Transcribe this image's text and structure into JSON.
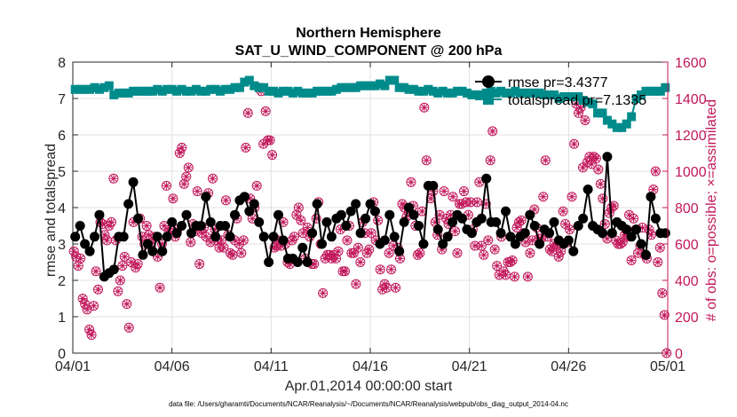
{
  "chart_data": {
    "type": "line",
    "title_line1": "Northern Hemisphere",
    "title_line2": "SAT_U_WIND_COMPONENT @ 200 hPa",
    "xlabel": "Apr.01,2014 00:00:00 start",
    "ylabel_left": "rmse and totalspread",
    "ylabel_right": "# of obs: o=possible; ×=assimilated",
    "footnote": "data file: /Users/gharamti/Documents/NCAR/Reanalysis/~/Documents/NCAR/Reanalysis/webpub/obs_diag_output_2014-04.nc",
    "xlim": [
      0,
      30
    ],
    "ylim_left": [
      0,
      8
    ],
    "ylim_right": [
      0,
      1600
    ],
    "x_ticks": [
      0,
      5,
      10,
      15,
      20,
      25,
      30
    ],
    "x_tick_labels": [
      "04/01",
      "04/06",
      "04/11",
      "04/16",
      "04/21",
      "04/26",
      "05/01"
    ],
    "y_left_ticks": [
      0,
      1,
      2,
      3,
      4,
      5,
      6,
      7,
      8
    ],
    "y_left_tick_labels": [
      "0",
      "1",
      "2",
      "3",
      "4",
      "5",
      "6",
      "7",
      "8"
    ],
    "y_right_ticks": [
      0,
      200,
      400,
      600,
      800,
      1000,
      1200,
      1400,
      1600
    ],
    "y_right_tick_labels": [
      "0",
      "200",
      "400",
      "600",
      "800",
      "1000",
      "1200",
      "1400",
      "1600"
    ],
    "grid": true,
    "legend_position": "top-right",
    "colors": {
      "rmse": "#000000",
      "totalspread": "#008b8b",
      "obs": "#c2185b"
    },
    "series": [
      {
        "name": "rmse pr=3.4377",
        "axis": "left",
        "values": [
          3.2,
          3.5,
          3.0,
          2.8,
          3.2,
          3.8,
          2.1,
          2.2,
          2.3,
          3.2,
          3.2,
          4.1,
          4.7,
          3.7,
          2.7,
          3.0,
          2.8,
          3.2,
          2.8,
          3.2,
          3.6,
          3.3,
          3.5,
          3.8,
          3.3,
          3.5,
          3.5,
          4.3,
          3.6,
          3.2,
          3.5,
          3.5,
          3.2,
          3.8,
          4.2,
          4.3,
          3.9,
          4.1,
          3.6,
          3.2,
          2.5,
          3.2,
          3.8,
          3.1,
          2.6,
          2.6,
          2.5,
          2.9,
          2.5,
          3.3,
          4.1,
          3.0,
          3.6,
          3.2,
          3.7,
          3.8,
          3.5,
          3.9,
          4.1,
          3.3,
          3.7,
          4.1,
          3.9,
          3.0,
          3.1,
          3.8,
          3.2,
          2.8,
          3.6,
          4.0,
          3.8,
          3.5,
          3.0,
          4.6,
          4.6,
          3.4,
          3.0,
          3.2,
          3.6,
          3.8,
          3.7,
          3.4,
          3.3,
          3.6,
          3.7,
          4.8,
          3.6,
          3.6,
          3.3,
          3.9,
          3.2,
          3.0,
          3.2,
          3.3,
          3.8,
          3.5,
          3.0,
          3.4,
          3.3,
          3.6,
          3.1,
          3.0,
          3.1,
          2.8,
          3.5,
          3.7,
          4.5,
          3.5,
          3.4,
          3.3,
          5.4,
          3.3,
          3.6,
          3.5,
          3.4,
          3.2,
          3.4,
          3.0,
          2.7,
          4.3,
          3.7,
          3.3,
          3.3
        ]
      },
      {
        "name": "totalspread pr=7.1335",
        "axis": "left",
        "values": [
          7.25,
          7.25,
          7.25,
          7.25,
          7.3,
          7.25,
          7.3,
          7.35,
          7.1,
          7.15,
          7.15,
          7.15,
          7.2,
          7.2,
          7.2,
          7.2,
          7.2,
          7.25,
          7.2,
          7.25,
          7.25,
          7.2,
          7.25,
          7.2,
          7.2,
          7.25,
          7.2,
          7.2,
          7.25,
          7.25,
          7.2,
          7.25,
          7.25,
          7.3,
          7.3,
          7.45,
          7.5,
          7.35,
          7.3,
          7.3,
          7.2,
          7.2,
          7.15,
          7.2,
          7.2,
          7.15,
          7.2,
          7.15,
          7.15,
          7.15,
          7.2,
          7.2,
          7.2,
          7.2,
          7.25,
          7.3,
          7.3,
          7.3,
          7.3,
          7.35,
          7.35,
          7.35,
          7.35,
          7.4,
          7.35,
          7.5,
          7.5,
          7.3,
          7.3,
          7.25,
          7.25,
          7.2,
          7.2,
          7.25,
          7.2,
          7.15,
          7.2,
          7.15,
          7.15,
          7.2,
          7.2,
          7.15,
          7.1,
          7.1,
          7.1,
          7.15,
          7.2,
          7.15,
          7.2,
          7.15,
          7.15,
          7.2,
          7.15,
          7.15,
          7.15,
          7.15,
          7.15,
          7.1,
          7.1,
          7.1,
          7.0,
          7.05,
          7.05,
          7.05,
          7.05,
          6.95,
          6.9,
          6.85,
          6.6,
          6.6,
          6.4,
          6.3,
          6.2,
          6.2,
          6.3,
          6.5,
          7.0,
          7.1,
          7.2,
          7.2,
          7.2,
          7.2,
          7.3
        ]
      }
    ],
    "obs_possible_values": [
      560,
      530,
      480,
      520,
      300,
      270,
      240,
      130,
      100,
      260,
      450,
      350,
      720,
      710,
      650,
      620,
      700,
      720,
      960,
      620,
      340,
      400,
      480,
      530,
      270,
      140,
      500,
      720,
      470,
      490,
      740,
      640,
      600,
      700,
      650,
      590,
      630,
      640,
      530,
      360,
      600,
      700,
      920,
      670,
      660,
      850,
      640,
      680,
      1100,
      1130,
      930,
      970,
      1020,
      610,
      710,
      670,
      890,
      490,
      660,
      690,
      640,
      880,
      610,
      960,
      680,
      620,
      580,
      620,
      580,
      840,
      650,
      550,
      540,
      620,
      740,
      600,
      550,
      620,
      1130,
      1320,
      850,
      740,
      800,
      920,
      1460,
      1440,
      1150,
      1330,
      1170,
      1170,
      1090,
      580,
      590,
      620,
      590,
      720,
      600,
      500,
      490,
      620,
      640,
      760,
      800,
      730,
      660,
      520,
      690,
      640,
      490,
      490,
      740,
      830,
      600,
      330,
      520,
      540,
      540,
      520,
      540,
      520,
      560,
      680,
      450,
      450,
      620,
      700,
      550,
      550,
      380,
      580,
      500,
      720,
      660,
      550,
      570,
      660,
      830,
      620,
      730,
      460,
      350,
      380,
      360,
      550,
      460,
      590,
      360,
      580,
      520,
      820,
      800,
      750,
      780,
      940,
      810,
      700,
      540,
      550,
      780,
      1350,
      1060,
      920,
      850,
      890,
      720,
      650,
      760,
      570,
      890,
      740,
      710,
      760,
      860,
      670,
      550,
      820,
      820,
      890,
      830,
      760,
      830,
      680,
      590,
      830,
      940,
      590,
      540,
      820,
      620,
      1060,
      1220,
      570,
      480,
      430,
      640,
      450,
      430,
      500,
      500,
      510,
      420,
      690,
      720,
      730,
      660,
      610,
      420,
      550,
      620,
      790,
      690,
      630,
      630,
      860,
      1060,
      640,
      570,
      560,
      600,
      590,
      530,
      560,
      780,
      710,
      610,
      680,
      860,
      1150,
      1370,
      1320,
      1350,
      1020,
      1280,
      1050,
      1080,
      1040,
      1080,
      1070,
      1010,
      930,
      850,
      710,
      630,
      770,
      800,
      810,
      620,
      600,
      600,
      610,
      650,
      640,
      760,
      510,
      740,
      680,
      550,
      590,
      690,
      540,
      520,
      680,
      650,
      900,
      1000,
      500,
      580,
      330,
      210,
      0
    ],
    "obs_assimilated_values": [
      560,
      530,
      480,
      520,
      300,
      270,
      240,
      130,
      100,
      260,
      450,
      350,
      720,
      710,
      650,
      620,
      700,
      720,
      960,
      620,
      340,
      400,
      480,
      530,
      270,
      140,
      500,
      720,
      470,
      490,
      740,
      640,
      600,
      700,
      650,
      590,
      630,
      640,
      530,
      360,
      600,
      700,
      920,
      670,
      660,
      850,
      640,
      680,
      1100,
      1130,
      930,
      970,
      1020,
      610,
      710,
      670,
      890,
      490,
      660,
      690,
      640,
      880,
      610,
      960,
      680,
      620,
      580,
      620,
      580,
      840,
      650,
      550,
      540,
      620,
      740,
      600,
      550,
      620,
      1130,
      1320,
      850,
      740,
      800,
      920,
      1460,
      1440,
      1150,
      1330,
      1170,
      1170,
      1090,
      580,
      590,
      620,
      590,
      720,
      600,
      500,
      490,
      620,
      640,
      760,
      800,
      730,
      660,
      520,
      690,
      640,
      490,
      490,
      740,
      830,
      600,
      330,
      520,
      540,
      540,
      520,
      540,
      520,
      560,
      680,
      450,
      450,
      620,
      700,
      550,
      550,
      380,
      580,
      500,
      720,
      660,
      550,
      570,
      660,
      830,
      620,
      730,
      460,
      350,
      380,
      360,
      550,
      460,
      590,
      360,
      580,
      520,
      820,
      800,
      750,
      780,
      940,
      810,
      700,
      540,
      550,
      780,
      1350,
      1060,
      920,
      850,
      890,
      720,
      650,
      760,
      570,
      890,
      740,
      710,
      760,
      860,
      670,
      550,
      820,
      820,
      890,
      830,
      760,
      830,
      680,
      590,
      830,
      940,
      590,
      540,
      820,
      620,
      1060,
      1220,
      570,
      480,
      430,
      640,
      450,
      430,
      500,
      500,
      510,
      420,
      690,
      720,
      730,
      660,
      610,
      420,
      550,
      620,
      790,
      690,
      630,
      630,
      860,
      1060,
      640,
      570,
      560,
      600,
      590,
      530,
      560,
      780,
      710,
      610,
      680,
      860,
      1150,
      1370,
      1320,
      1350,
      1020,
      1280,
      1050,
      1080,
      1040,
      1080,
      1070,
      1010,
      930,
      850,
      710,
      630,
      770,
      800,
      810,
      620,
      600,
      600,
      610,
      650,
      640,
      760,
      510,
      740,
      680,
      550,
      590,
      690,
      540,
      520,
      680,
      650,
      900,
      1000,
      500,
      580,
      330,
      210,
      0
    ]
  }
}
